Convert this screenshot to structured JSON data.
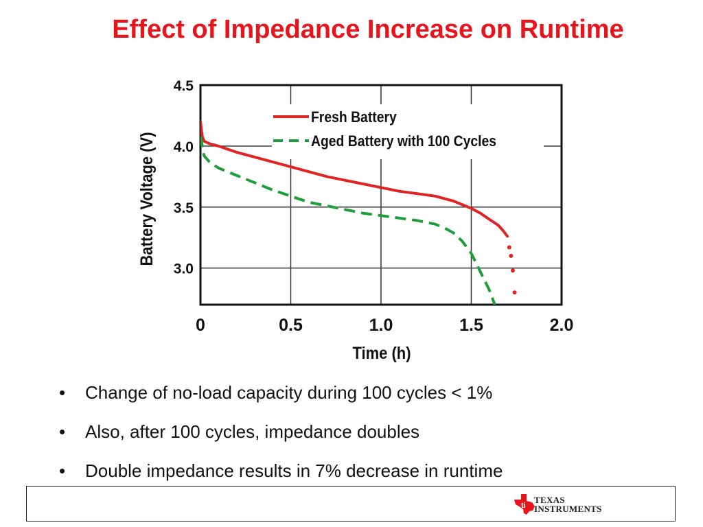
{
  "slide": {
    "title": "Effect of Impedance Increase on Runtime",
    "bullets": [
      "Change of no-load capacity during 100 cycles < 1%",
      "Also, after 100 cycles, impedance doubles",
      "Double impedance results in 7% decrease in runtime"
    ]
  },
  "branding": {
    "logo_icon": "texas-state-ti-icon",
    "logo_line1": "Texas",
    "logo_line2": "Instruments",
    "logo_color": "#e8141c"
  },
  "chart_data": {
    "type": "line",
    "xlabel": "Time (h)",
    "ylabel": "Battery Voltage (V)",
    "xlim": [
      0,
      2.0
    ],
    "ylim": [
      2.7,
      4.5
    ],
    "xticks": [
      "0",
      "0.5",
      "1.0",
      "1.5",
      "2.0"
    ],
    "yticks": [
      "4.5",
      "4.0",
      "3.5",
      "3.0"
    ],
    "grid": true,
    "legend_position": "top-center",
    "series": [
      {
        "name": "Fresh Battery",
        "color": "#e02424",
        "style": "solid",
        "x": [
          0,
          0.01,
          0.02,
          0.05,
          0.1,
          0.2,
          0.3,
          0.4,
          0.5,
          0.6,
          0.7,
          0.8,
          0.9,
          1.0,
          1.1,
          1.2,
          1.3,
          1.4,
          1.45,
          1.5,
          1.55,
          1.6,
          1.65,
          1.68,
          1.7
        ],
        "y": [
          4.2,
          4.08,
          4.04,
          4.02,
          4.0,
          3.95,
          3.91,
          3.87,
          3.83,
          3.79,
          3.75,
          3.72,
          3.69,
          3.66,
          3.63,
          3.61,
          3.59,
          3.55,
          3.52,
          3.49,
          3.45,
          3.4,
          3.35,
          3.3,
          3.26
        ],
        "tail_points": {
          "x": [
            1.71,
            1.72,
            1.73,
            1.74
          ],
          "y": [
            3.17,
            3.1,
            2.98,
            2.8
          ]
        }
      },
      {
        "name": "Aged Battery with 100 Cycles",
        "color": "#1e9e3a",
        "style": "dashed",
        "x": [
          0,
          0.02,
          0.05,
          0.1,
          0.2,
          0.3,
          0.4,
          0.5,
          0.6,
          0.7,
          0.8,
          0.9,
          1.0,
          1.1,
          1.2,
          1.3,
          1.35,
          1.4,
          1.45,
          1.5,
          1.55,
          1.6,
          1.63
        ],
        "y": [
          4.08,
          3.92,
          3.87,
          3.82,
          3.76,
          3.7,
          3.64,
          3.59,
          3.54,
          3.51,
          3.48,
          3.45,
          3.43,
          3.41,
          3.39,
          3.36,
          3.33,
          3.29,
          3.22,
          3.12,
          2.97,
          2.82,
          2.7
        ]
      }
    ]
  }
}
